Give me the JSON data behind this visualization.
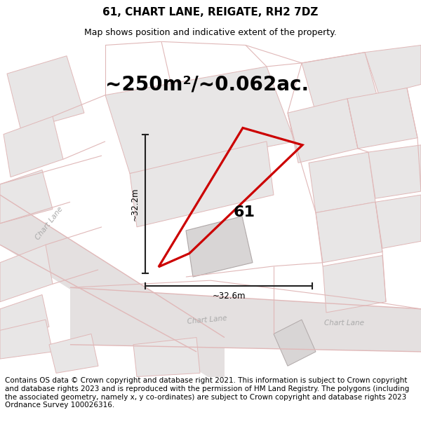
{
  "title": "61, CHART LANE, REIGATE, RH2 7DZ",
  "subtitle": "Map shows position and indicative extent of the property.",
  "area_label": "~250m²/~0.062ac.",
  "property_number": "61",
  "dim_horizontal": "~32.6m",
  "dim_vertical": "~32.2m",
  "footer": "Contains OS data © Crown copyright and database right 2021. This information is subject to Crown copyright and database rights 2023 and is reproduced with the permission of HM Land Registry. The polygons (including the associated geometry, namely x, y co-ordinates) are subject to Crown copyright and database rights 2023 Ordnance Survey 100026316.",
  "bg_color": "#f2f0f0",
  "highlight_color": "#cc0000",
  "dim_line_color": "#222222",
  "title_fontsize": 11,
  "subtitle_fontsize": 9,
  "area_fontsize": 20,
  "footer_fontsize": 7.5,
  "road_color": "#e8d0d0",
  "parcel_edge": "#e0b8b8",
  "building_fill_light": "#e8e6e6",
  "building_fill_dark": "#d8d5d5"
}
